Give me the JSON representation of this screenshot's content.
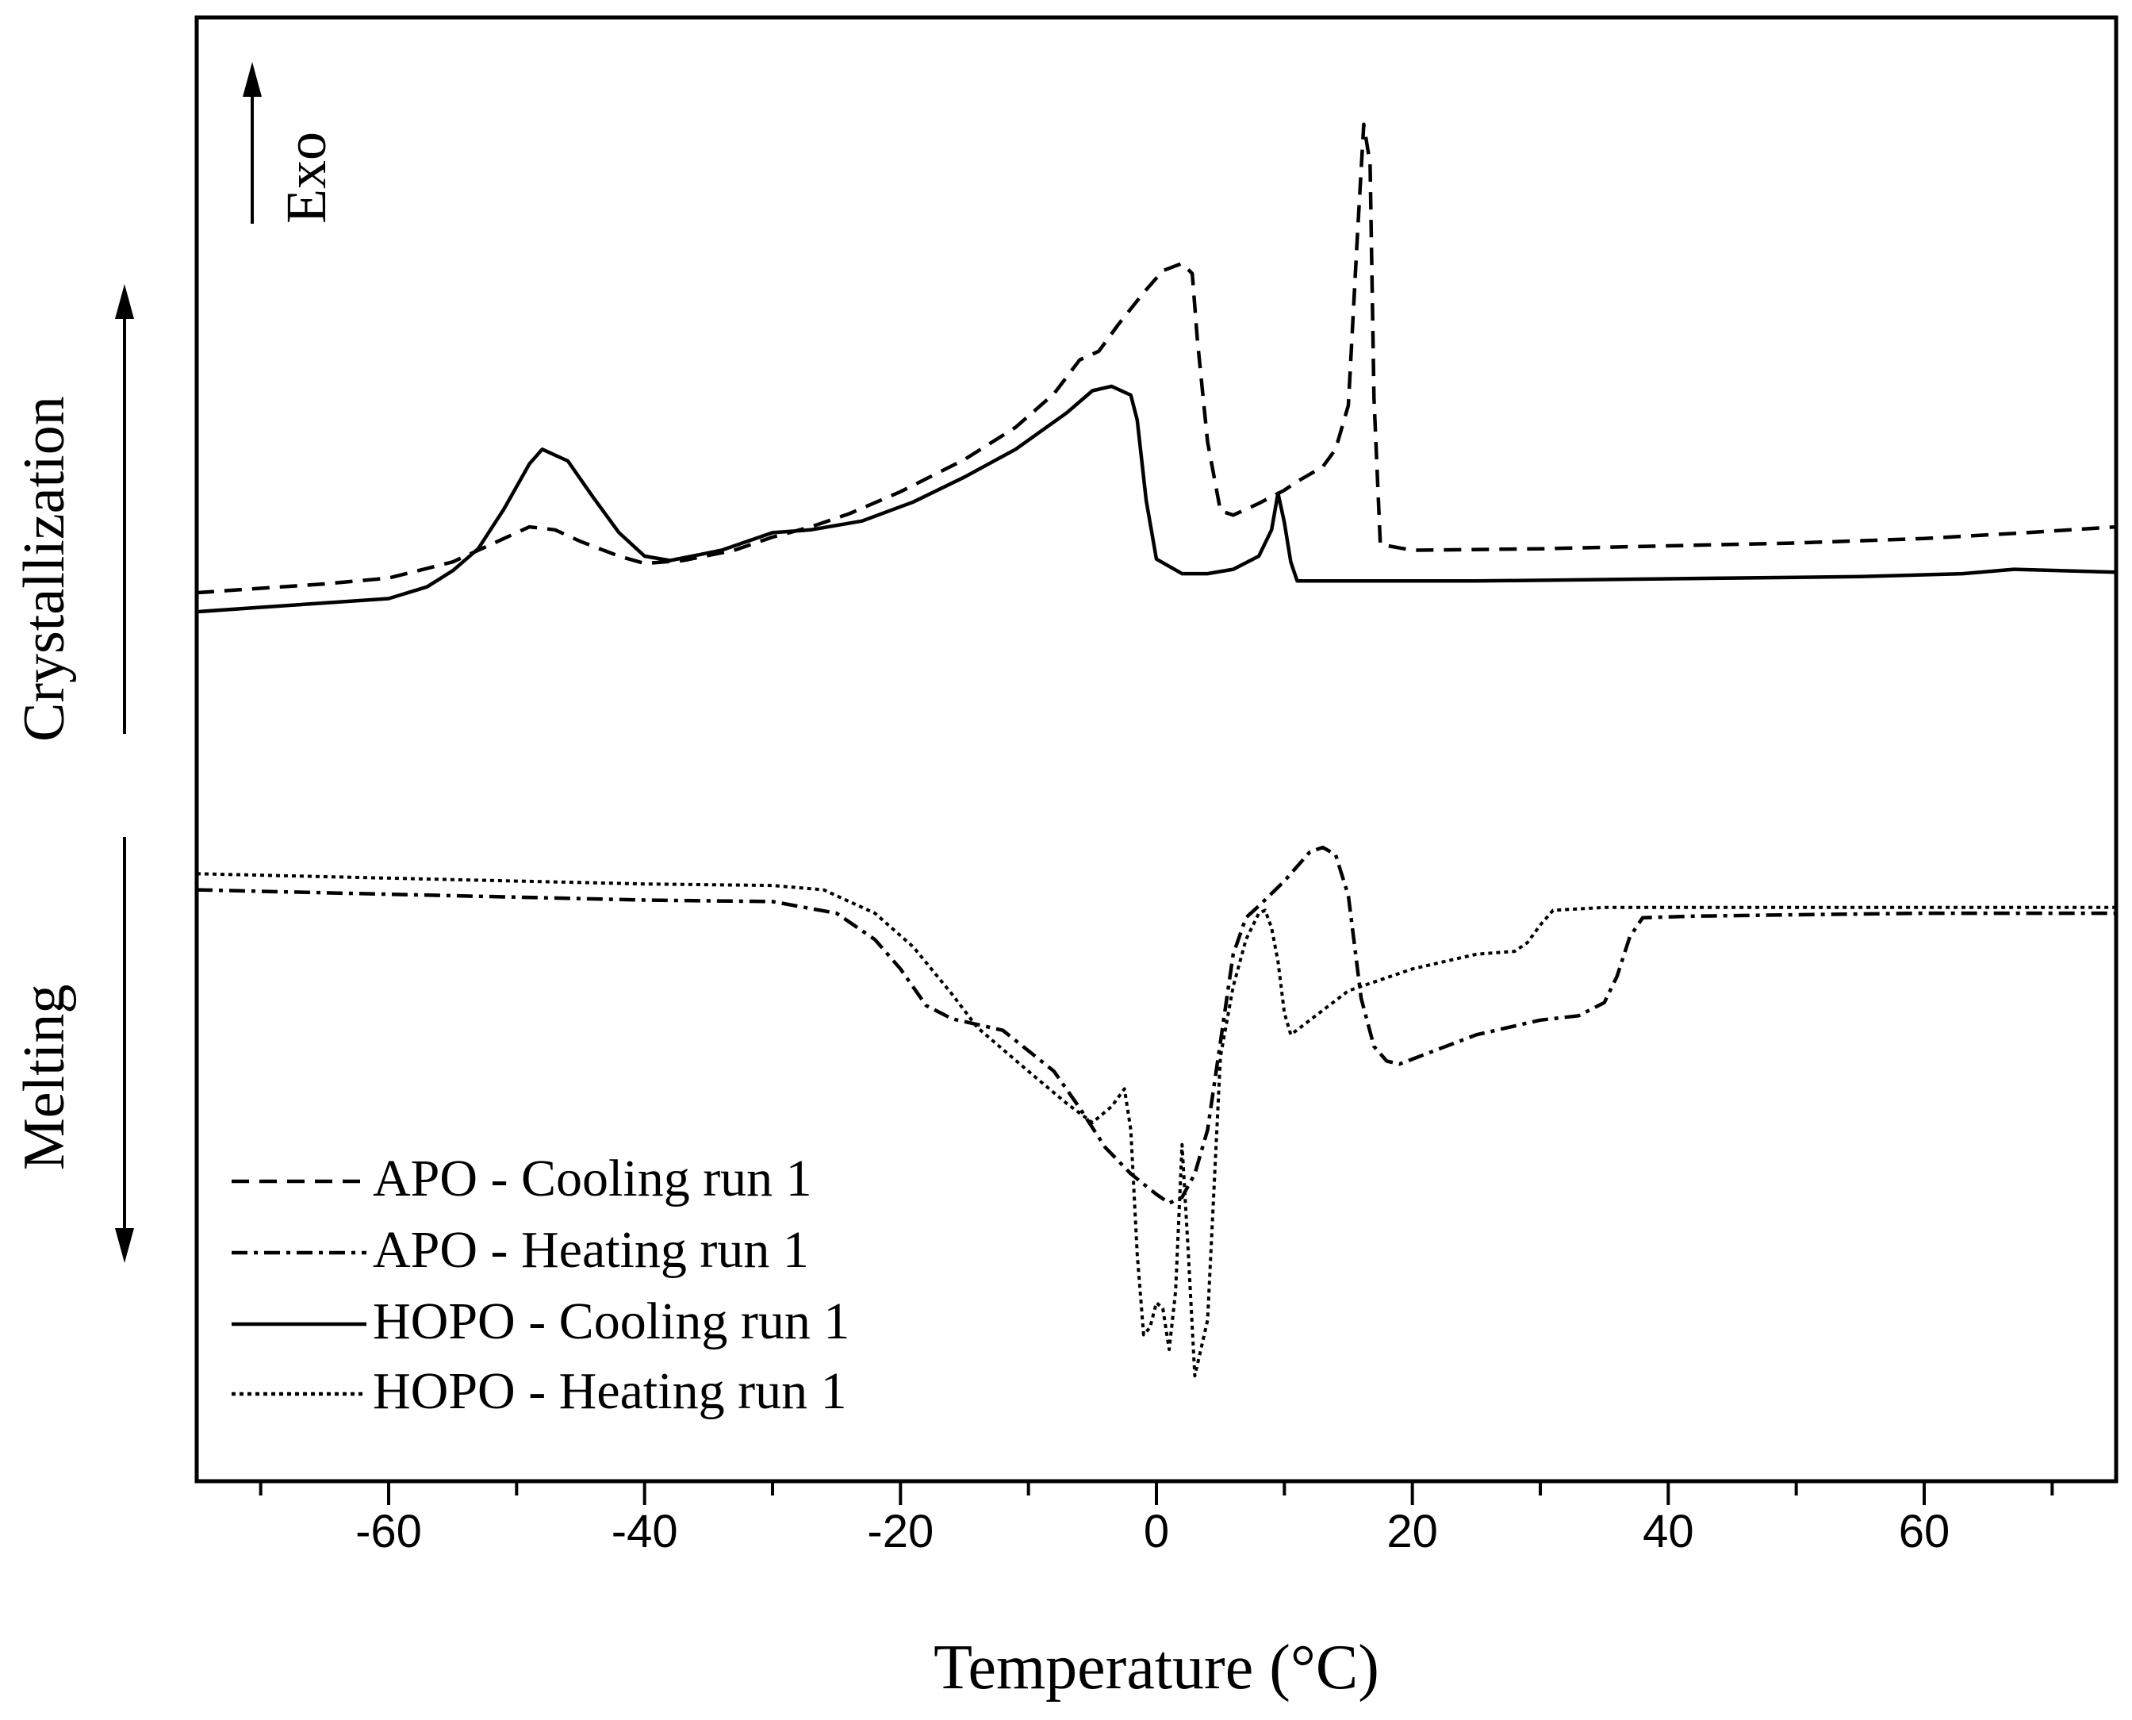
{
  "chart_data": {
    "type": "line",
    "xlabel": "Temperature (°C)",
    "ylabel": "",
    "xlim": [
      -75,
      75
    ],
    "ylim": [
      0,
      1000
    ],
    "xticks": [
      -60,
      -40,
      -20,
      0,
      20,
      40,
      60
    ],
    "xtick_labels": [
      "-60",
      "-40",
      "-20",
      "0",
      "20",
      "40",
      "60"
    ],
    "grid": false,
    "legend_position": "bottom-left",
    "annotations": {
      "exo": "Exo",
      "crystallization": "Crystallization",
      "melting": "Melting"
    },
    "series": [
      {
        "name": "APO - Cooling run 1",
        "style": "dashed",
        "points": [
          [
            -75,
            607
          ],
          [
            -70,
            610
          ],
          [
            -65,
            613
          ],
          [
            -60,
            617
          ],
          [
            -55,
            628
          ],
          [
            -52,
            640
          ],
          [
            -49,
            652
          ],
          [
            -47,
            650
          ],
          [
            -45,
            642
          ],
          [
            -42,
            632
          ],
          [
            -40,
            627
          ],
          [
            -37,
            629
          ],
          [
            -33,
            636
          ],
          [
            -30,
            645
          ],
          [
            -27,
            652
          ],
          [
            -24,
            661
          ],
          [
            -20,
            676
          ],
          [
            -15,
            698
          ],
          [
            -11,
            720
          ],
          [
            -8,
            743
          ],
          [
            -6,
            766
          ],
          [
            -4.5,
            772
          ],
          [
            -3,
            790
          ],
          [
            -1,
            812
          ],
          [
            0.5,
            827
          ],
          [
            2,
            832
          ],
          [
            2.8,
            825
          ],
          [
            3.2,
            780
          ],
          [
            4,
            710
          ],
          [
            5,
            663
          ],
          [
            6,
            660
          ],
          [
            8,
            668
          ],
          [
            10,
            677
          ],
          [
            11,
            683
          ],
          [
            13,
            693
          ],
          [
            14,
            705
          ],
          [
            15,
            735
          ],
          [
            15.7,
            850
          ],
          [
            16.2,
            927
          ],
          [
            16.7,
            900
          ],
          [
            17,
            740
          ],
          [
            17.5,
            640
          ],
          [
            20,
            636
          ],
          [
            30,
            637
          ],
          [
            40,
            639
          ],
          [
            50,
            641
          ],
          [
            60,
            644
          ],
          [
            68,
            648
          ],
          [
            75,
            652
          ]
        ]
      },
      {
        "name": "HOPO - Cooling run 1",
        "style": "solid",
        "points": [
          [
            -75,
            594
          ],
          [
            -70,
            597
          ],
          [
            -65,
            600
          ],
          [
            -60,
            603
          ],
          [
            -57,
            611
          ],
          [
            -55,
            622
          ],
          [
            -53,
            637
          ],
          [
            -51,
            664
          ],
          [
            -49,
            695
          ],
          [
            -48,
            705
          ],
          [
            -46,
            697
          ],
          [
            -44,
            672
          ],
          [
            -42,
            648
          ],
          [
            -40,
            632
          ],
          [
            -38,
            629
          ],
          [
            -34,
            636
          ],
          [
            -30,
            648
          ],
          [
            -27,
            650
          ],
          [
            -23,
            656
          ],
          [
            -19,
            669
          ],
          [
            -15,
            686
          ],
          [
            -11,
            705
          ],
          [
            -7,
            730
          ],
          [
            -5,
            745
          ],
          [
            -3.5,
            748
          ],
          [
            -2,
            742
          ],
          [
            -1.5,
            725
          ],
          [
            -0.8,
            670
          ],
          [
            0,
            630
          ],
          [
            2,
            620
          ],
          [
            4,
            620
          ],
          [
            6,
            623
          ],
          [
            8,
            632
          ],
          [
            9,
            650
          ],
          [
            9.5,
            675
          ],
          [
            10,
            655
          ],
          [
            10.5,
            628
          ],
          [
            11,
            615
          ],
          [
            15,
            615
          ],
          [
            25,
            615
          ],
          [
            35,
            616
          ],
          [
            45,
            617
          ],
          [
            55,
            618
          ],
          [
            63,
            620
          ],
          [
            67,
            623
          ],
          [
            75,
            621
          ]
        ]
      },
      {
        "name": "APO - Heating run 1",
        "style": "dash-dot",
        "points": [
          [
            -75,
            404
          ],
          [
            -65,
            402
          ],
          [
            -55,
            400
          ],
          [
            -40,
            397
          ],
          [
            -30,
            396
          ],
          [
            -25,
            388
          ],
          [
            -22,
            370
          ],
          [
            -20,
            350
          ],
          [
            -18,
            325
          ],
          [
            -16,
            316
          ],
          [
            -12,
            308
          ],
          [
            -8,
            280
          ],
          [
            -6,
            255
          ],
          [
            -4,
            228
          ],
          [
            -2,
            210
          ],
          [
            0,
            196
          ],
          [
            1,
            190
          ],
          [
            2,
            194
          ],
          [
            3,
            210
          ],
          [
            4,
            240
          ],
          [
            5,
            300
          ],
          [
            6,
            360
          ],
          [
            7,
            385
          ],
          [
            8,
            393
          ],
          [
            10,
            410
          ],
          [
            12,
            430
          ],
          [
            13,
            433
          ],
          [
            14,
            428
          ],
          [
            15,
            400
          ],
          [
            16,
            330
          ],
          [
            17,
            297
          ],
          [
            18,
            287
          ],
          [
            19,
            285
          ],
          [
            22,
            295
          ],
          [
            25,
            305
          ],
          [
            30,
            315
          ],
          [
            33,
            318
          ],
          [
            35,
            327
          ],
          [
            36,
            345
          ],
          [
            37,
            372
          ],
          [
            38,
            385
          ],
          [
            42,
            386
          ],
          [
            50,
            387
          ],
          [
            60,
            388
          ],
          [
            75,
            388
          ]
        ]
      },
      {
        "name": "HOPO - Heating run 1",
        "style": "dotted",
        "points": [
          [
            -75,
            415
          ],
          [
            -65,
            413
          ],
          [
            -55,
            411
          ],
          [
            -40,
            408
          ],
          [
            -30,
            407
          ],
          [
            -26,
            404
          ],
          [
            -22,
            388
          ],
          [
            -19,
            365
          ],
          [
            -16,
            333
          ],
          [
            -14,
            310
          ],
          [
            -10,
            280
          ],
          [
            -7,
            258
          ],
          [
            -5,
            245
          ],
          [
            -3.5,
            256
          ],
          [
            -2.5,
            268
          ],
          [
            -2,
            240
          ],
          [
            -1.5,
            155
          ],
          [
            -1,
            100
          ],
          [
            -0.5,
            105
          ],
          [
            0,
            122
          ],
          [
            0.5,
            118
          ],
          [
            1,
            90
          ],
          [
            1.5,
            130
          ],
          [
            2,
            230
          ],
          [
            2.5,
            155
          ],
          [
            3,
            72
          ],
          [
            4,
            110
          ],
          [
            4.5,
            200
          ],
          [
            5,
            290
          ],
          [
            6,
            338
          ],
          [
            7,
            370
          ],
          [
            8,
            388
          ],
          [
            8.5,
            390
          ],
          [
            9,
            378
          ],
          [
            9.5,
            355
          ],
          [
            10,
            320
          ],
          [
            10.5,
            305
          ],
          [
            12,
            315
          ],
          [
            15,
            335
          ],
          [
            20,
            350
          ],
          [
            25,
            360
          ],
          [
            28,
            362
          ],
          [
            29,
            368
          ],
          [
            30,
            380
          ],
          [
            31,
            390
          ],
          [
            35,
            392
          ],
          [
            45,
            392
          ],
          [
            55,
            392
          ],
          [
            75,
            392
          ]
        ]
      }
    ]
  }
}
